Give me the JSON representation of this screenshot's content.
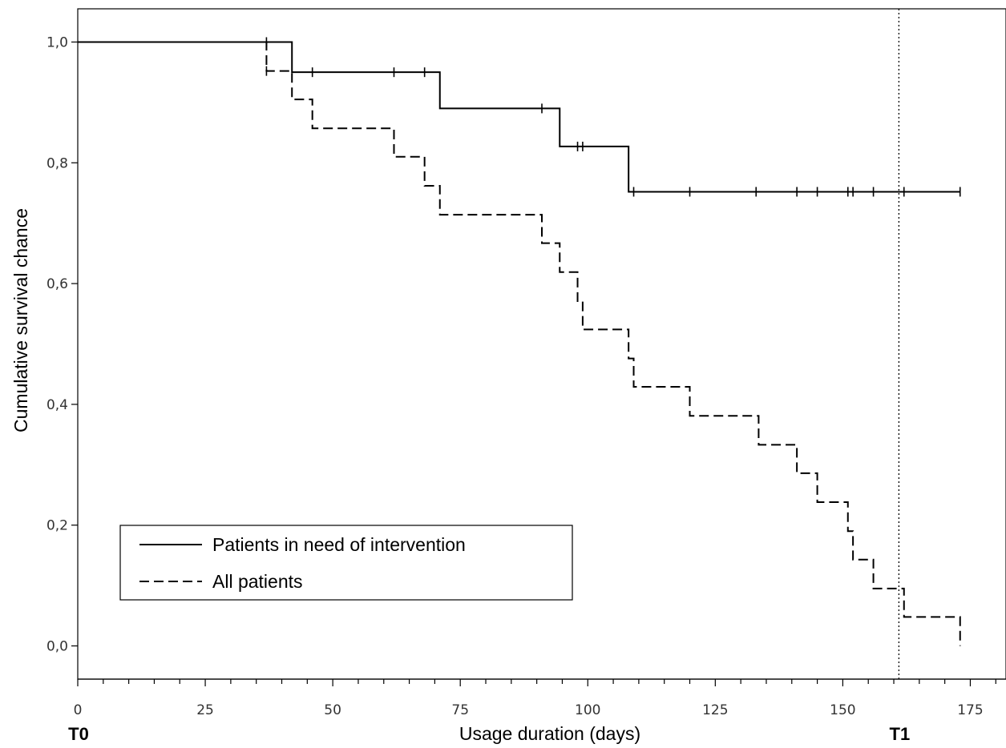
{
  "chart_data": {
    "type": "line",
    "subtype": "kaplan-meier step",
    "title": "",
    "xlabel": "Usage duration (days)",
    "ylabel": "Cumulative survival chance",
    "xlim": [
      0,
      182
    ],
    "ylim": [
      -0.055,
      1.055
    ],
    "x_ticks": [
      0,
      25,
      50,
      75,
      100,
      125,
      150,
      175
    ],
    "x_tick_labels": [
      "0",
      "25",
      "50",
      "75",
      "100",
      "125",
      "150",
      "175"
    ],
    "x_minor_tick_step": 5,
    "y_ticks": [
      0.0,
      0.2,
      0.4,
      0.6,
      0.8,
      1.0
    ],
    "y_tick_labels": [
      "0,0",
      "0,2",
      "0,4",
      "0,6",
      "0,8",
      "1,0"
    ],
    "grid": false,
    "legend_position": "bottom-left",
    "reference_lines": [
      {
        "x": 161,
        "style": "dotted",
        "color": "#000000"
      }
    ],
    "annotations": [
      {
        "text": "T0",
        "x": 0
      },
      {
        "text": "T1",
        "x": 161
      }
    ],
    "series": [
      {
        "name": "Patients in need of intervention",
        "style": "solid",
        "color": "#000000",
        "x": [
          0,
          42,
          71,
          94.5,
          108,
          173
        ],
        "y": [
          1.0,
          0.95,
          0.89,
          0.827,
          0.752,
          0.752
        ],
        "censored": [
          {
            "x": 37,
            "y": 1.0
          },
          {
            "x": 46,
            "y": 0.95
          },
          {
            "x": 62,
            "y": 0.95
          },
          {
            "x": 68,
            "y": 0.95
          },
          {
            "x": 91,
            "y": 0.89
          },
          {
            "x": 98,
            "y": 0.827
          },
          {
            "x": 99,
            "y": 0.827
          },
          {
            "x": 109,
            "y": 0.752
          },
          {
            "x": 120,
            "y": 0.752
          },
          {
            "x": 133,
            "y": 0.752
          },
          {
            "x": 141,
            "y": 0.752
          },
          {
            "x": 145,
            "y": 0.752
          },
          {
            "x": 151,
            "y": 0.752
          },
          {
            "x": 152,
            "y": 0.752
          },
          {
            "x": 156,
            "y": 0.752
          },
          {
            "x": 162,
            "y": 0.752
          },
          {
            "x": 173,
            "y": 0.752
          }
        ]
      },
      {
        "name": "All patients",
        "style": "dashed",
        "color": "#000000",
        "x": [
          0,
          37,
          42,
          46,
          62,
          68,
          71,
          91,
          94.5,
          98,
          99,
          108,
          109,
          120,
          133.5,
          141,
          145,
          151,
          152,
          156,
          162,
          173
        ],
        "y": [
          1.0,
          0.952,
          0.905,
          0.857,
          0.81,
          0.762,
          0.714,
          0.667,
          0.619,
          0.571,
          0.524,
          0.476,
          0.429,
          0.381,
          0.333,
          0.286,
          0.238,
          0.19,
          0.143,
          0.095,
          0.048,
          0.0
        ],
        "censored": [
          {
            "x": 37,
            "y": 0.952
          }
        ]
      }
    ]
  }
}
